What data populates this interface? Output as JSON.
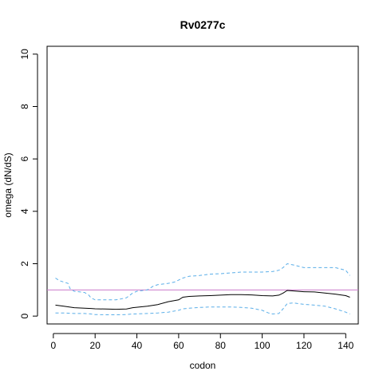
{
  "chart_data": {
    "type": "line",
    "title": "Rv0277c",
    "xlabel": "codon",
    "ylabel": "omega (dN/dS)",
    "xlim": [
      -3,
      146
    ],
    "ylim": [
      -0.3,
      10.3
    ],
    "x_ticks": [
      0,
      20,
      40,
      60,
      80,
      100,
      120,
      140
    ],
    "x_tick_labels": [
      "0",
      "20",
      "40",
      "60",
      "80",
      "100",
      "120",
      "140"
    ],
    "y_ticks": [
      0,
      2,
      4,
      6,
      8,
      10
    ],
    "y_tick_labels": [
      "0",
      "2",
      "4",
      "6",
      "8",
      "10"
    ],
    "reference_line": {
      "y": 1,
      "color": "#cc79cc"
    },
    "grid": false,
    "legend": "none",
    "series": [
      {
        "role": "estimate",
        "color": "#000000",
        "dash": "solid",
        "x": [
          1,
          5,
          10,
          15,
          18,
          20,
          25,
          30,
          35,
          38,
          45,
          50,
          55,
          60,
          62,
          65,
          70,
          75,
          80,
          85,
          90,
          95,
          100,
          105,
          108,
          110,
          112,
          115,
          120,
          125,
          130,
          135,
          140,
          142
        ],
        "y": [
          0.42,
          0.38,
          0.32,
          0.3,
          0.29,
          0.28,
          0.27,
          0.26,
          0.27,
          0.32,
          0.38,
          0.44,
          0.55,
          0.62,
          0.72,
          0.75,
          0.77,
          0.78,
          0.8,
          0.82,
          0.82,
          0.81,
          0.78,
          0.77,
          0.8,
          0.88,
          0.98,
          0.96,
          0.93,
          0.92,
          0.88,
          0.84,
          0.78,
          0.72
        ]
      },
      {
        "role": "upper",
        "color": "#5aaee8",
        "dash": "dashed",
        "x": [
          1,
          3,
          5,
          7,
          8,
          10,
          15,
          17,
          18,
          20,
          25,
          30,
          35,
          38,
          40,
          45,
          48,
          50,
          55,
          58,
          62,
          65,
          70,
          75,
          80,
          85,
          90,
          95,
          100,
          105,
          108,
          110,
          112,
          115,
          120,
          125,
          130,
          135,
          140,
          142
        ],
        "y": [
          1.45,
          1.35,
          1.3,
          1.25,
          1.05,
          0.95,
          0.9,
          0.8,
          0.7,
          0.62,
          0.62,
          0.62,
          0.7,
          0.88,
          0.95,
          1.0,
          1.15,
          1.2,
          1.25,
          1.3,
          1.45,
          1.52,
          1.55,
          1.6,
          1.62,
          1.65,
          1.68,
          1.68,
          1.68,
          1.7,
          1.75,
          1.85,
          2.0,
          1.95,
          1.85,
          1.85,
          1.85,
          1.85,
          1.75,
          1.55
        ]
      },
      {
        "role": "lower",
        "color": "#5aaee8",
        "dash": "dashed",
        "x": [
          1,
          5,
          10,
          15,
          18,
          20,
          25,
          30,
          35,
          38,
          45,
          50,
          55,
          60,
          62,
          65,
          70,
          75,
          80,
          85,
          90,
          95,
          100,
          103,
          105,
          108,
          110,
          112,
          115,
          120,
          125,
          130,
          135,
          140,
          142
        ],
        "y": [
          0.12,
          0.12,
          0.1,
          0.1,
          0.08,
          0.06,
          0.05,
          0.05,
          0.06,
          0.08,
          0.1,
          0.12,
          0.15,
          0.22,
          0.28,
          0.3,
          0.33,
          0.35,
          0.35,
          0.35,
          0.33,
          0.3,
          0.22,
          0.12,
          0.08,
          0.1,
          0.28,
          0.48,
          0.5,
          0.45,
          0.42,
          0.38,
          0.28,
          0.15,
          0.08
        ]
      }
    ]
  }
}
